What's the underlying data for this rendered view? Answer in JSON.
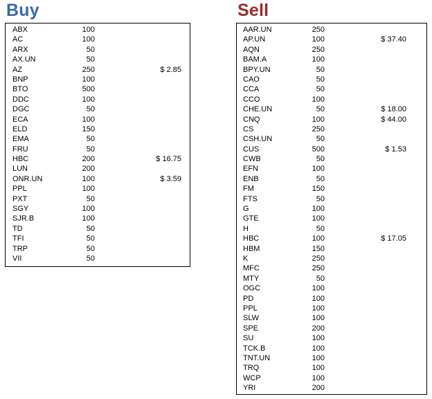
{
  "buy": {
    "title": "Buy",
    "title_color": "#3a6aa8",
    "rows": [
      {
        "symbol": "ABX",
        "qty": "100",
        "price": ""
      },
      {
        "symbol": "AC",
        "qty": "100",
        "price": ""
      },
      {
        "symbol": "ARX",
        "qty": "50",
        "price": ""
      },
      {
        "symbol": "AX.UN",
        "qty": "50",
        "price": ""
      },
      {
        "symbol": "AZ",
        "qty": "250",
        "price": "$ 2.85"
      },
      {
        "symbol": "BNP",
        "qty": "100",
        "price": ""
      },
      {
        "symbol": "BTO",
        "qty": "500",
        "price": ""
      },
      {
        "symbol": "DDC",
        "qty": "100",
        "price": ""
      },
      {
        "symbol": "DGC",
        "qty": "50",
        "price": ""
      },
      {
        "symbol": "ECA",
        "qty": "100",
        "price": ""
      },
      {
        "symbol": "ELD",
        "qty": "150",
        "price": ""
      },
      {
        "symbol": "EMA",
        "qty": "50",
        "price": ""
      },
      {
        "symbol": "FRU",
        "qty": "50",
        "price": ""
      },
      {
        "symbol": "HBC",
        "qty": "200",
        "price": "$ 16.75"
      },
      {
        "symbol": "LUN",
        "qty": "200",
        "price": ""
      },
      {
        "symbol": "ONR.UN",
        "qty": "100",
        "price": "$ 3.59"
      },
      {
        "symbol": "PPL",
        "qty": "100",
        "price": ""
      },
      {
        "symbol": "PXT",
        "qty": "50",
        "price": ""
      },
      {
        "symbol": "SGY",
        "qty": "100",
        "price": ""
      },
      {
        "symbol": "SJR.B",
        "qty": "100",
        "price": ""
      },
      {
        "symbol": "TD",
        "qty": "50",
        "price": ""
      },
      {
        "symbol": "TFI",
        "qty": "50",
        "price": ""
      },
      {
        "symbol": "TRP",
        "qty": "50",
        "price": ""
      },
      {
        "symbol": "VII",
        "qty": "50",
        "price": ""
      }
    ]
  },
  "sell": {
    "title": "Sell",
    "title_color": "#9b2b2b",
    "rows": [
      {
        "symbol": "AAR.UN",
        "qty": "250",
        "price": ""
      },
      {
        "symbol": "AP.UN",
        "qty": "100",
        "price": "$ 37.40"
      },
      {
        "symbol": "AQN",
        "qty": "250",
        "price": ""
      },
      {
        "symbol": "BAM.A",
        "qty": "100",
        "price": ""
      },
      {
        "symbol": "BPY.UN",
        "qty": "50",
        "price": ""
      },
      {
        "symbol": "CAO",
        "qty": "50",
        "price": ""
      },
      {
        "symbol": "CCA",
        "qty": "50",
        "price": ""
      },
      {
        "symbol": "CCO",
        "qty": "100",
        "price": ""
      },
      {
        "symbol": "CHE.UN",
        "qty": "50",
        "price": "$ 18.00"
      },
      {
        "symbol": "CNQ",
        "qty": "100",
        "price": "$ 44.00"
      },
      {
        "symbol": "CS",
        "qty": "250",
        "price": ""
      },
      {
        "symbol": "CSH.UN",
        "qty": "50",
        "price": ""
      },
      {
        "symbol": "CUS",
        "qty": "500",
        "price": "$ 1.53"
      },
      {
        "symbol": "CWB",
        "qty": "50",
        "price": ""
      },
      {
        "symbol": "EFN",
        "qty": "100",
        "price": ""
      },
      {
        "symbol": "ENB",
        "qty": "50",
        "price": ""
      },
      {
        "symbol": "FM",
        "qty": "150",
        "price": ""
      },
      {
        "symbol": "FTS",
        "qty": "50",
        "price": ""
      },
      {
        "symbol": "G",
        "qty": "100",
        "price": ""
      },
      {
        "symbol": "GTE",
        "qty": "100",
        "price": ""
      },
      {
        "symbol": "H",
        "qty": "50",
        "price": ""
      },
      {
        "symbol": "HBC",
        "qty": "100",
        "price": "$ 17.05"
      },
      {
        "symbol": "HBM",
        "qty": "150",
        "price": ""
      },
      {
        "symbol": "K",
        "qty": "250",
        "price": ""
      },
      {
        "symbol": "MFC",
        "qty": "250",
        "price": ""
      },
      {
        "symbol": "MTY",
        "qty": "50",
        "price": ""
      },
      {
        "symbol": "OGC",
        "qty": "100",
        "price": ""
      },
      {
        "symbol": "PD",
        "qty": "100",
        "price": ""
      },
      {
        "symbol": "PPL",
        "qty": "100",
        "price": ""
      },
      {
        "symbol": "SLW",
        "qty": "100",
        "price": ""
      },
      {
        "symbol": "SPE",
        "qty": "200",
        "price": ""
      },
      {
        "symbol": "SU",
        "qty": "100",
        "price": ""
      },
      {
        "symbol": "TCK.B",
        "qty": "100",
        "price": ""
      },
      {
        "symbol": "TNT.UN",
        "qty": "100",
        "price": ""
      },
      {
        "symbol": "TRQ",
        "qty": "100",
        "price": ""
      },
      {
        "symbol": "WCP",
        "qty": "100",
        "price": ""
      },
      {
        "symbol": "YRI",
        "qty": "200",
        "price": ""
      }
    ]
  }
}
